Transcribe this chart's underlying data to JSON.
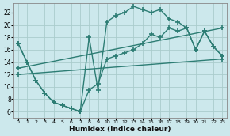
{
  "xlabel": "Humidex (Indice chaleur)",
  "bg_color": "#cce8ec",
  "grid_color": "#aacccc",
  "line_color": "#2d7d74",
  "xlim": [
    -0.5,
    23.5
  ],
  "ylim": [
    5.0,
    23.5
  ],
  "xticks": [
    0,
    1,
    2,
    3,
    4,
    5,
    6,
    7,
    8,
    9,
    10,
    11,
    12,
    13,
    14,
    15,
    16,
    17,
    18,
    19,
    20,
    21,
    22,
    23
  ],
  "yticks": [
    6,
    8,
    10,
    12,
    14,
    16,
    18,
    20,
    22
  ],
  "line1_x": [
    0,
    1,
    2,
    3,
    4,
    5,
    6,
    7,
    8,
    9,
    10,
    11,
    12,
    13,
    14,
    15,
    16,
    17,
    18,
    19,
    20,
    21,
    22,
    23
  ],
  "line1_y": [
    17,
    14,
    11,
    9,
    7.5,
    7,
    6.5,
    6,
    18,
    9.5,
    20.5,
    21.5,
    22,
    23,
    22.5,
    22,
    22.5,
    21,
    20.5,
    19.5,
    16,
    19,
    16.5,
    15
  ],
  "line2_x": [
    0,
    1,
    2,
    3,
    4,
    5,
    6,
    7,
    8,
    9,
    10,
    11,
    12,
    13,
    14,
    15,
    16,
    17,
    18,
    19,
    20,
    21,
    22,
    23
  ],
  "line2_y": [
    17,
    14,
    11,
    9,
    7.5,
    7,
    6.5,
    6,
    9.5,
    10.5,
    14.5,
    15,
    15.5,
    16,
    17,
    18.5,
    18,
    19.5,
    19,
    19.5,
    16,
    19,
    16.5,
    15
  ],
  "line3_x": [
    0,
    23
  ],
  "line3_y": [
    13,
    19.5
  ],
  "line4_x": [
    0,
    23
  ],
  "line4_y": [
    12,
    14.5
  ]
}
